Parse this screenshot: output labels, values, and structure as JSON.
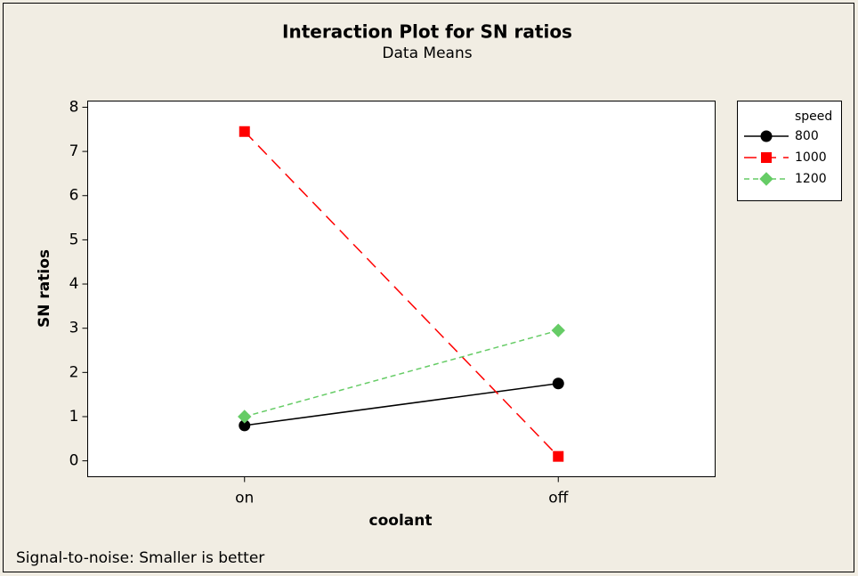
{
  "chart_data": {
    "type": "line",
    "title": "Interaction Plot for SN ratios",
    "subtitle": "Data Means",
    "x_label": "coolant",
    "y_label": "SN ratios",
    "footnote": "Signal-to-noise: Smaller is better",
    "legend_title": "speed",
    "legend": "right",
    "categories": [
      "on",
      "off"
    ],
    "series": [
      {
        "name": "800",
        "color": "#000000",
        "marker": "circle",
        "dash": "solid",
        "values": [
          0.8,
          1.75
        ]
      },
      {
        "name": "1000",
        "color": "#ff0000",
        "marker": "square",
        "dash": "long",
        "values": [
          7.45,
          0.1
        ]
      },
      {
        "name": "1200",
        "color": "#66cc66",
        "marker": "diamond",
        "dash": "short",
        "values": [
          1.0,
          2.95
        ]
      }
    ],
    "ylim": [
      -0.36,
      8.14
    ],
    "yticks": [
      0,
      1,
      2,
      3,
      4,
      5,
      6,
      7,
      8
    ]
  }
}
